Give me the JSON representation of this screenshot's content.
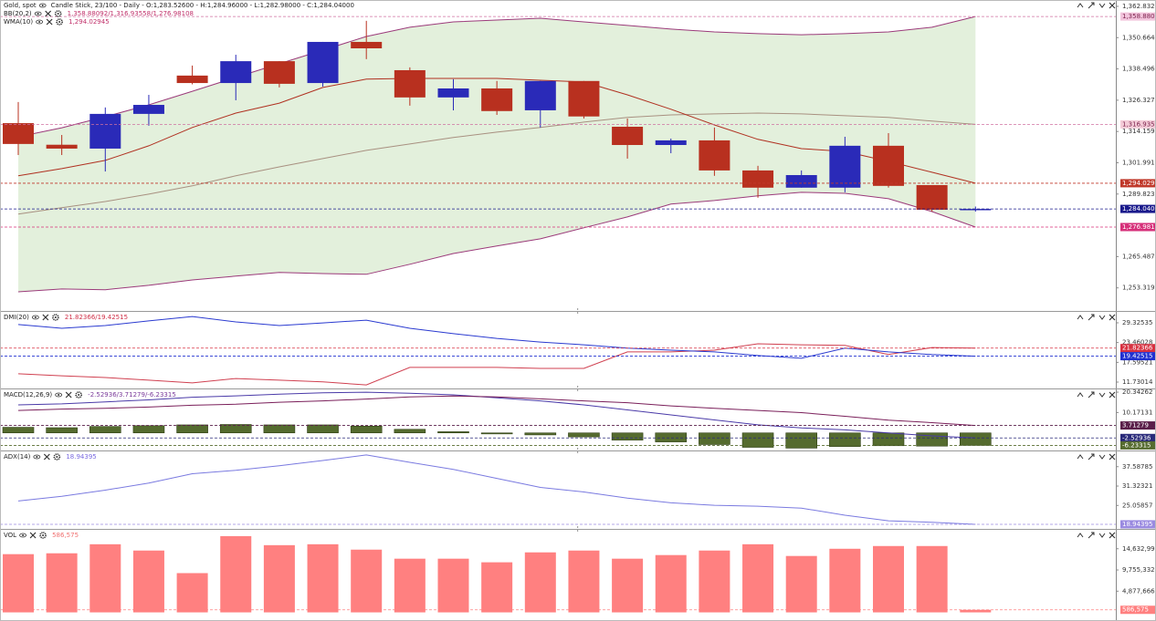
{
  "chart_data": [
    {
      "type": "candlestick",
      "title": "Gold, spot",
      "subtitle": "Candle Stick, 23/100 - Daily - O:1,283.52600 - H:1,284.96000 - L:1,282.98000 - C:1,284.04000",
      "studies": [
        {
          "name": "BB(20,2)",
          "label": "1,358.88092/1,316.93558/1,276.98108",
          "color": "#c0306a"
        },
        {
          "name": "WMA(10)",
          "label": "1,294.02945",
          "color": "#c0306a"
        }
      ],
      "open": [
        1317.4,
        1309.0,
        1307.5,
        1321.0,
        1335.9,
        1333.0,
        1341.5,
        1333.0,
        1349.0,
        1338.0,
        1327.4,
        1330.9,
        1322.4,
        1333.8,
        1316.0,
        1308.9,
        1310.7,
        1299.0,
        1292.3,
        1292.3,
        1308.6,
        1293.3,
        1283.526
      ],
      "high": [
        1325.6,
        1312.8,
        1323.5,
        1328.4,
        1339.8,
        1344.0,
        1341.5,
        1349.0,
        1357.2,
        1339.1,
        1334.5,
        1333.8,
        1333.8,
        1333.8,
        1319.2,
        1311.4,
        1315.7,
        1300.8,
        1299.0,
        1312.1,
        1313.5,
        1293.3,
        1284.96
      ],
      "low": [
        1305.0,
        1305.0,
        1298.6,
        1316.4,
        1332.5,
        1326.3,
        1331.3,
        1331.6,
        1342.3,
        1324.2,
        1322.4,
        1320.6,
        1315.7,
        1319.2,
        1303.6,
        1305.7,
        1296.9,
        1288.4,
        1292.3,
        1290.5,
        1292.3,
        1283.0,
        1282.98
      ],
      "close": [
        1309.3,
        1307.5,
        1321.0,
        1324.5,
        1333.0,
        1341.5,
        1332.7,
        1349.0,
        1346.5,
        1327.4,
        1330.9,
        1322.1,
        1333.8,
        1320.0,
        1308.9,
        1310.7,
        1299.0,
        1292.3,
        1297.2,
        1308.6,
        1293.0,
        1283.7,
        1284.04
      ],
      "up_color": "#2a2ab8",
      "down_color": "#b8301f",
      "band_fill": "#e3f0dc",
      "series": [
        {
          "color": "#9b3a7a",
          "values": [
            1312.1,
            1315.6,
            1319.9,
            1324.5,
            1329.8,
            1335.2,
            1340.5,
            1345.8,
            1351.1,
            1354.7,
            1356.8,
            1357.5,
            1358.2,
            1356.8,
            1355.4,
            1354.0,
            1352.9,
            1352.2,
            1351.8,
            1352.2,
            1352.9,
            1354.7,
            1358.88092
          ]
        },
        {
          "color": "#a89080",
          "values": [
            1282.0,
            1284.5,
            1286.9,
            1289.8,
            1293.0,
            1296.9,
            1300.4,
            1303.6,
            1306.8,
            1309.3,
            1311.8,
            1313.9,
            1315.7,
            1317.8,
            1319.6,
            1320.6,
            1321.0,
            1321.3,
            1321.0,
            1320.3,
            1319.6,
            1318.2,
            1316.93558
          ]
        },
        {
          "color": "#9b3a7a",
          "values": [
            1251.8,
            1252.9,
            1252.6,
            1254.3,
            1256.4,
            1257.9,
            1259.3,
            1258.9,
            1258.6,
            1262.5,
            1266.7,
            1269.6,
            1272.4,
            1276.7,
            1280.9,
            1285.9,
            1287.3,
            1289.1,
            1290.5,
            1290.1,
            1288.0,
            1283.0,
            1276.98108
          ]
        },
        {
          "color": "#b03020",
          "values": [
            1296.9,
            1299.7,
            1302.9,
            1308.6,
            1315.7,
            1321.3,
            1325.2,
            1331.3,
            1334.5,
            1334.8,
            1334.8,
            1334.8,
            1334.1,
            1333.4,
            1328.4,
            1322.8,
            1316.7,
            1311.1,
            1307.5,
            1306.4,
            1302.5,
            1298.3,
            1294.02945
          ]
        }
      ],
      "ylim": [
        1244.7,
        1365.3
      ],
      "yticks": [
        {
          "value": 1362.83243,
          "label": "1,362.83243"
        },
        {
          "value": 1350.66428,
          "label": "1,350.66428"
        },
        {
          "value": 1338.49613,
          "label": "1,338.49613"
        },
        {
          "value": 1326.32799,
          "label": "1,326.32799"
        },
        {
          "value": 1314.15984,
          "label": "1,314.15984"
        },
        {
          "value": 1301.99169,
          "label": "1,301.99169"
        },
        {
          "value": 1289.82355,
          "label": "1,289.82355"
        },
        {
          "value": 1265.48725,
          "label": "1,265.48725"
        },
        {
          "value": 1253.31911,
          "label": "1,253.31911"
        }
      ],
      "markers": [
        {
          "value": 1358.88092,
          "label": "1,358.88092",
          "color": "#f2c4dc",
          "text_color": "#7a1f4a"
        },
        {
          "value": 1316.93558,
          "label": "1,316.93558",
          "color": "#f4ccd8",
          "text_color": "#7a1f4a"
        },
        {
          "value": 1294.02945,
          "label": "1,294.02945",
          "color": "#c0392b",
          "text_color": "#ffffff"
        },
        {
          "value": 1284.04,
          "label": "1,284.04000",
          "color": "#1a1a8c",
          "text_color": "#ffffff"
        },
        {
          "value": 1276.98108,
          "label": "1,276.98108",
          "color": "#d6307a",
          "text_color": "#ffffff"
        }
      ],
      "grid": false
    },
    {
      "type": "line",
      "studies": [
        {
          "name": "DMI(20)",
          "label": "21.82366/19.42515",
          "color": "#d03048"
        }
      ],
      "series": [
        {
          "color": "#d04050",
          "values": [
            14.2,
            13.6,
            13.1,
            12.3,
            11.5,
            12.8,
            12.3,
            11.8,
            10.9,
            16.1,
            16.1,
            16.1,
            15.8,
            15.8,
            20.7,
            20.7,
            21.2,
            23.1,
            22.8,
            22.6,
            19.9,
            22.0,
            21.82366
          ]
        },
        {
          "color": "#2a3ad0",
          "values": [
            28.8,
            27.7,
            28.5,
            29.9,
            31.2,
            29.6,
            28.5,
            29.3,
            30.1,
            27.7,
            26.1,
            24.7,
            23.6,
            22.8,
            21.8,
            21.2,
            20.7,
            19.6,
            18.8,
            21.8,
            20.7,
            19.9,
            19.42515
          ]
        }
      ],
      "ylim": [
        10.11,
        32.57
      ],
      "yticks": [
        29.32535,
        23.46028,
        17.59521,
        11.73014
      ],
      "markers": [
        {
          "value": 21.82366,
          "label": "21.82366",
          "color": "#d83040",
          "text_color": "#ffffff"
        },
        {
          "value": 19.42515,
          "label": "19.42515",
          "color": "#2030d0",
          "text_color": "#ffffff"
        }
      ],
      "grid": false
    },
    {
      "type": "combo",
      "studies": [
        {
          "name": "MACD(12,26,9)",
          "label": "-2.52936/3.71279/-6.23315",
          "color": "#7a3a9a"
        }
      ],
      "series": [
        {
          "type": "line",
          "color": "#4a3aa8",
          "values": [
            14.0,
            14.5,
            15.5,
            16.5,
            17.8,
            18.5,
            19.3,
            20.0,
            20.3,
            19.8,
            19.0,
            17.5,
            16.0,
            14.0,
            11.5,
            9.0,
            6.5,
            4.0,
            2.5,
            1.5,
            0.0,
            -1.5,
            -2.52936
          ]
        },
        {
          "type": "line",
          "color": "#7a1f5a",
          "values": [
            11.2,
            11.9,
            12.3,
            12.9,
            13.8,
            14.3,
            15.3,
            16.0,
            16.9,
            18.0,
            18.4,
            18.0,
            17.0,
            16.0,
            15.1,
            13.5,
            12.3,
            11.2,
            10.1,
            8.3,
            6.4,
            5.1,
            3.71279
          ]
        },
        {
          "type": "bar",
          "color": "#556b2f",
          "values": [
            2.8,
            2.6,
            3.2,
            3.6,
            4.0,
            4.2,
            4.0,
            4.0,
            3.4,
            1.8,
            0.6,
            -0.5,
            -1.0,
            -2.0,
            -3.6,
            -4.5,
            -5.8,
            -7.2,
            -7.6,
            -6.8,
            -6.4,
            -6.6,
            -6.23315
          ]
        }
      ],
      "ylim": [
        -8.32,
        21.73
      ],
      "yticks": [
        20.34262,
        10.17131
      ],
      "markers": [
        {
          "value": 3.71279,
          "label": "3.71279",
          "color": "#5a1f4a",
          "text_color": "#ffffff"
        },
        {
          "value": -2.52936,
          "label": "-2.52936",
          "color": "#2a2a7a",
          "text_color": "#ffffff"
        },
        {
          "value": -6.23315,
          "label": "-6.23315",
          "color": "#556b2f",
          "text_color": "#ffffff"
        }
      ],
      "grid": false
    },
    {
      "type": "line",
      "studies": [
        {
          "name": "ADX(14)",
          "label": "18.94395",
          "color": "#7a6ae0"
        }
      ],
      "series": [
        {
          "color": "#7a7ae0",
          "values": [
            26.5,
            28.0,
            30.0,
            32.3,
            35.3,
            36.4,
            37.9,
            39.6,
            41.4,
            39.0,
            36.7,
            33.8,
            30.9,
            29.4,
            27.4,
            25.9,
            25.1,
            24.8,
            24.2,
            21.9,
            20.1,
            19.6,
            18.94395
          ]
        }
      ],
      "ylim": [
        17.76,
        42.54
      ],
      "yticks": [
        37.58785,
        31.32321,
        25.05857
      ],
      "markers": [
        {
          "value": 18.94395,
          "label": "18.94395",
          "color": "#9a8ae0",
          "text_color": "#ffffff"
        }
      ],
      "grid": false
    },
    {
      "type": "bar",
      "studies": [
        {
          "name": "VOL",
          "label": "586,575",
          "color": "#f07070"
        }
      ],
      "color": "#ff8080",
      "values": [
        13390000,
        13590000,
        15670000,
        14220000,
        9030000,
        17540000,
        15460000,
        15670000,
        14430000,
        12350000,
        12350000,
        11520000,
        13800000,
        14220000,
        12350000,
        13180000,
        14220000,
        15670000,
        12970000,
        14630000,
        15260000,
        15260000,
        586575
      ],
      "ylim": [
        -726000,
        18990000
      ],
      "yticks": [
        {
          "value": 14632999,
          "label": "14,632,999"
        },
        {
          "value": 9755332,
          "label": "9,755,332"
        },
        {
          "value": 4877666,
          "label": "4,877,666"
        }
      ],
      "markers": [
        {
          "value": 586575,
          "label": "586,575",
          "color": "#ff8080",
          "text_color": "#ffffff"
        }
      ],
      "grid": false
    }
  ]
}
